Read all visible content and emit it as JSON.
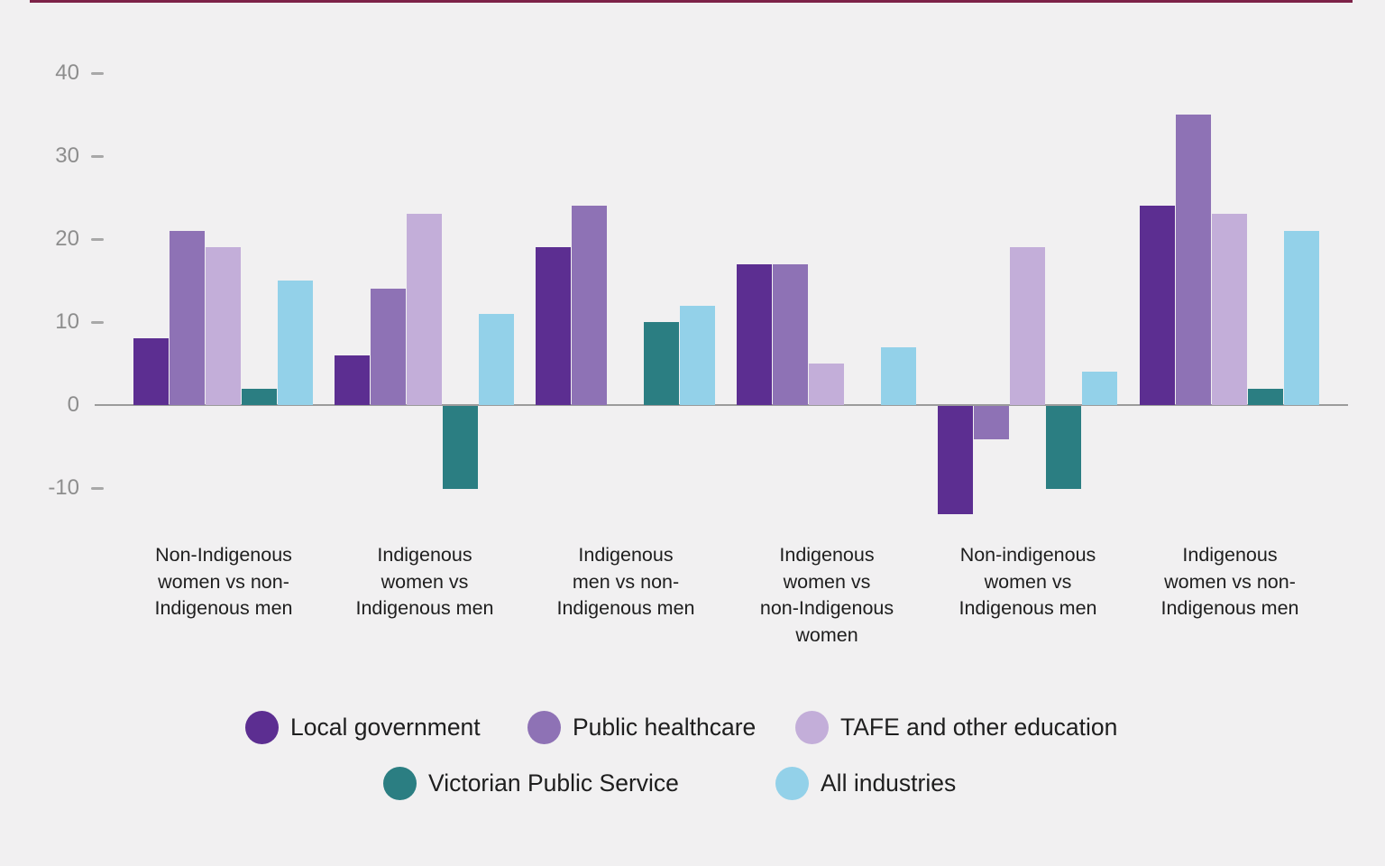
{
  "chart_data": {
    "type": "bar",
    "title": "",
    "xlabel": "",
    "ylabel": "",
    "grid": false,
    "legend_position": "bottom",
    "y_ticks": [
      40,
      30,
      20,
      10,
      0,
      -10
    ],
    "ylim": [
      -17,
      43
    ],
    "categories": [
      "Non-Indigenous women vs non-Indigenous men",
      "Indigenous women vs Indigenous men",
      "Indigenous men vs non-Indigenous men",
      "Indigenous women vs non-Indigenous women",
      "Non-indigenous women vs Indigenous men",
      "Indigenous women vs non-Indigenous men"
    ],
    "category_lines": [
      [
        "Non-Indigenous",
        "women vs non-",
        "Indigenous men"
      ],
      [
        "Indigenous",
        "women vs",
        "Indigenous men"
      ],
      [
        "Indigenous",
        "men vs non-",
        "Indigenous men"
      ],
      [
        "Indigenous",
        "women vs",
        "non-Indigenous",
        "women"
      ],
      [
        "Non-indigenous",
        "women vs",
        "Indigenous men"
      ],
      [
        "Indigenous",
        "women vs non-",
        "Indigenous men"
      ]
    ],
    "series": [
      {
        "name": "Local government",
        "color": "#5c2e91",
        "values": [
          8,
          6,
          19,
          17,
          -13,
          24
        ]
      },
      {
        "name": "Public healthcare",
        "color": "#8e72b5",
        "values": [
          21,
          14,
          24,
          17,
          -4,
          35
        ]
      },
      {
        "name": "TAFE and other education",
        "color": "#c3aed9",
        "values": [
          19,
          23,
          null,
          5,
          19,
          23
        ]
      },
      {
        "name": "Victorian Public Service",
        "color": "#2b7e82",
        "values": [
          2,
          -10,
          10,
          null,
          -10,
          2
        ]
      },
      {
        "name": "All industries",
        "color": "#93d1e9",
        "values": [
          15,
          11,
          12,
          7,
          4,
          21
        ]
      }
    ]
  },
  "colors": {
    "background": "#f1f0f1",
    "axis_line": "#9b9b9b",
    "tick_dash": "#a8a8a8",
    "axis_text": "#8d8d8d",
    "category_text": "#1e1e1e",
    "legend_text": "#1e1e1e",
    "top_strip": "#7d2248"
  }
}
